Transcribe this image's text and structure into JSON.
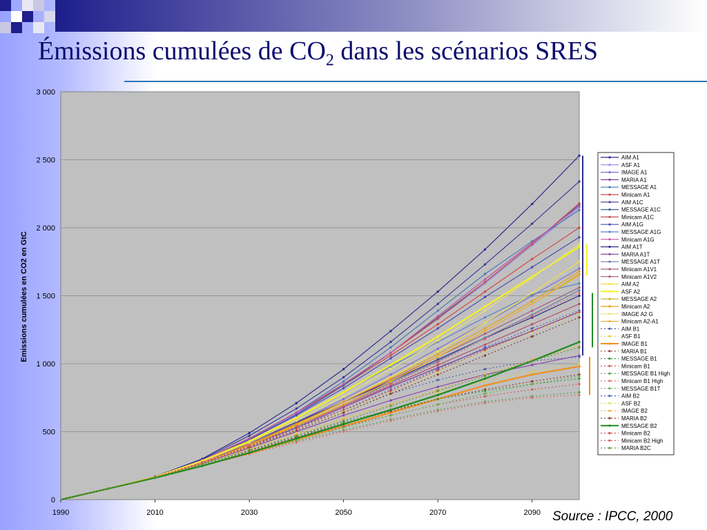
{
  "slide": {
    "title_main": "Émissions cumulées de CO",
    "title_sub": "2",
    "title_rest": " dans les scénarios SRES",
    "source": "Source : IPCC, 2000"
  },
  "colors": {
    "slide_left": "#9aa4ff",
    "slide_top_bar": "#1e1e8c",
    "plot_bg": "#c0c0c0",
    "rule": "#2e75b6"
  },
  "chart_data": {
    "type": "line",
    "title": "",
    "xlabel": "",
    "ylabel": "Emissions cumulées en CO2 en GtC",
    "x": [
      1990,
      2000,
      2010,
      2020,
      2030,
      2040,
      2050,
      2060,
      2070,
      2080,
      2090,
      2100
    ],
    "xlim": [
      1990,
      2100
    ],
    "ylim": [
      0,
      3000
    ],
    "x_ticks": [
      "1990",
      "2010",
      "2030",
      "2050",
      "2070",
      "2090"
    ],
    "y_ticks": [
      "0",
      "500",
      "1 000",
      "1 500",
      "2 000",
      "2 500",
      "3 000"
    ],
    "grid": "horizontal",
    "legend_position": "right",
    "series": [
      {
        "name": "AIM A1",
        "color": "#2b2b8f",
        "dash": "solid",
        "width": 1.2,
        "values": [
          0,
          80,
          170,
          300,
          490,
          710,
          960,
          1240,
          1530,
          1840,
          2175,
          2530
        ]
      },
      {
        "name": "ASF A1",
        "color": "#8a8af0",
        "dash": "solid",
        "width": 1.2,
        "values": [
          0,
          80,
          168,
          285,
          440,
          630,
          850,
          1080,
          1330,
          1590,
          1870,
          2150
        ]
      },
      {
        "name": "IMAGE A1",
        "color": "#7b6fd0",
        "dash": "solid",
        "width": 1.2,
        "values": [
          0,
          80,
          165,
          275,
          410,
          570,
          740,
          920,
          1110,
          1300,
          1500,
          1700
        ]
      },
      {
        "name": "MARIA A1",
        "color": "#7b3f9e",
        "dash": "solid",
        "width": 1.2,
        "values": [
          0,
          80,
          165,
          270,
          395,
          530,
          680,
          830,
          970,
          1110,
          1240,
          1380
        ]
      },
      {
        "name": "MESSAGE A1",
        "color": "#4a7ab8",
        "dash": "solid",
        "width": 1.2,
        "values": [
          0,
          80,
          167,
          285,
          445,
          640,
          870,
          1120,
          1390,
          1660,
          1900,
          2130
        ]
      },
      {
        "name": "Minicam A1",
        "color": "#d04848",
        "dash": "solid",
        "width": 1.2,
        "values": [
          0,
          80,
          168,
          290,
          450,
          640,
          840,
          1060,
          1290,
          1530,
          1770,
          2000
        ]
      },
      {
        "name": "AIM A1C",
        "color": "#3a3a9a",
        "dash": "solid",
        "width": 1.2,
        "values": [
          0,
          80,
          170,
          295,
          470,
          670,
          900,
          1160,
          1440,
          1730,
          2030,
          2340
        ]
      },
      {
        "name": "MESSAGE A1C",
        "color": "#3f5f9e",
        "dash": "solid",
        "width": 1.2,
        "values": [
          0,
          80,
          167,
          285,
          440,
          625,
          840,
          1080,
          1340,
          1600,
          1880,
          2170
        ]
      },
      {
        "name": "Minicam A1C",
        "color": "#c85050",
        "dash": "solid",
        "width": 1.2,
        "values": [
          0,
          80,
          168,
          290,
          450,
          640,
          850,
          1080,
          1330,
          1600,
          1880,
          2180
        ]
      },
      {
        "name": "AIM A1G",
        "color": "#4b4bb0",
        "dash": "solid",
        "width": 1.2,
        "values": [
          0,
          80,
          168,
          285,
          440,
          620,
          820,
          1040,
          1260,
          1490,
          1710,
          1930
        ]
      },
      {
        "name": "MESSAGE A1G",
        "color": "#5a82c0",
        "dash": "solid",
        "width": 1.2,
        "values": [
          0,
          80,
          167,
          280,
          430,
          600,
          790,
          980,
          1160,
          1340,
          1510,
          1590
        ]
      },
      {
        "name": "Minicam A1G",
        "color": "#c054a0",
        "dash": "solid",
        "width": 1.2,
        "values": [
          0,
          80,
          168,
          290,
          450,
          640,
          850,
          1080,
          1350,
          1620,
          1890,
          2160
        ]
      },
      {
        "name": "AIM A1T",
        "color": "#2e2e88",
        "dash": "solid",
        "width": 1.2,
        "values": [
          0,
          80,
          167,
          280,
          420,
          570,
          720,
          870,
          1030,
          1190,
          1340,
          1500
        ]
      },
      {
        "name": "MARIA A1T",
        "color": "#8a4ab0",
        "dash": "solid",
        "width": 1.2,
        "values": [
          0,
          80,
          165,
          265,
          380,
          500,
          620,
          730,
          830,
          920,
          990,
          1060
        ]
      },
      {
        "name": "MESSAGE A1T",
        "color": "#6a7aa8",
        "dash": "solid",
        "width": 1.2,
        "values": [
          0,
          80,
          165,
          270,
          400,
          545,
          700,
          860,
          1020,
          1190,
          1360,
          1540
        ]
      },
      {
        "name": "Minicam A1V1",
        "color": "#a06080",
        "dash": "solid",
        "width": 1.2,
        "values": [
          0,
          80,
          166,
          275,
          410,
          560,
          720,
          880,
          1050,
          1220,
          1390,
          1560
        ]
      },
      {
        "name": "Minicam A1V2",
        "color": "#b05070",
        "dash": "solid",
        "width": 1.2,
        "values": [
          0,
          80,
          166,
          272,
          400,
          540,
          690,
          840,
          990,
          1140,
          1290,
          1440
        ]
      },
      {
        "name": "AIM A2",
        "color": "#f0e040",
        "dash": "solid",
        "width": 1.2,
        "values": [
          0,
          80,
          165,
          270,
          400,
          550,
          720,
          900,
          1090,
          1300,
          1520,
          1750
        ]
      },
      {
        "name": "ASF A2",
        "color": "#f5f020",
        "dash": "solid",
        "width": 2.2,
        "values": [
          0,
          80,
          167,
          285,
          430,
          600,
          790,
          990,
          1200,
          1420,
          1640,
          1860
        ]
      },
      {
        "name": "MESSAGE A2",
        "color": "#c8b020",
        "dash": "solid",
        "width": 1.2,
        "values": [
          0,
          80,
          165,
          270,
          400,
          545,
          700,
          870,
          1050,
          1240,
          1440,
          1660
        ]
      },
      {
        "name": "Minicam A2",
        "color": "#e8a010",
        "dash": "solid",
        "width": 1.2,
        "values": [
          0,
          80,
          165,
          272,
          405,
          555,
          720,
          890,
          1070,
          1260,
          1460,
          1680
        ]
      },
      {
        "name": "IMAGE A2 G",
        "color": "#e8e070",
        "dash": "solid",
        "width": 1.2,
        "values": [
          0,
          80,
          166,
          280,
          420,
          580,
          760,
          960,
          1170,
          1390,
          1630,
          1880
        ]
      },
      {
        "name": "Minicam A2-A1",
        "color": "#f0b030",
        "dash": "solid",
        "width": 1.2,
        "values": [
          0,
          80,
          165,
          270,
          395,
          540,
          700,
          870,
          1050,
          1240,
          1440,
          1650
        ]
      },
      {
        "name": "AIM B1",
        "color": "#4a60b0",
        "dash": "dotted",
        "width": 1.2,
        "values": [
          0,
          80,
          166,
          275,
          400,
          530,
          660,
          780,
          880,
          960,
          1020,
          1050
        ]
      },
      {
        "name": "ASF B1",
        "color": "#e0d040",
        "dash": "dotted",
        "width": 1.2,
        "values": [
          0,
          80,
          165,
          265,
          375,
          490,
          600,
          700,
          790,
          870,
          940,
          1000
        ]
      },
      {
        "name": "IMAGE B1",
        "color": "#f0901e",
        "dash": "solid",
        "width": 2.2,
        "values": [
          0,
          80,
          162,
          250,
          340,
          440,
          540,
          640,
          740,
          840,
          920,
          980
        ]
      },
      {
        "name": "MARIA B1",
        "color": "#9a3a3a",
        "dash": "dotted",
        "width": 1.2,
        "values": [
          0,
          80,
          164,
          260,
          360,
          460,
          560,
          650,
          740,
          810,
          870,
          920
        ]
      },
      {
        "name": "MESSAGE B1",
        "color": "#3a9a3a",
        "dash": "dotted",
        "width": 1.2,
        "values": [
          0,
          80,
          165,
          262,
          365,
          470,
          570,
          660,
          740,
          800,
          850,
          890
        ]
      },
      {
        "name": "Minicam B1",
        "color": "#d06060",
        "dash": "dotted",
        "width": 1.2,
        "values": [
          0,
          80,
          164,
          258,
          355,
          450,
          540,
          620,
          700,
          760,
          810,
          850
        ]
      },
      {
        "name": "MESSAGE B1 High",
        "color": "#50a050",
        "dash": "dotted",
        "width": 1.2,
        "values": [
          0,
          80,
          164,
          255,
          345,
          430,
          510,
          590,
          660,
          720,
          760,
          790
        ]
      },
      {
        "name": "Minicam B1 High",
        "color": "#e07070",
        "dash": "dotted",
        "width": 1.2,
        "values": [
          0,
          80,
          163,
          250,
          335,
          420,
          500,
          580,
          650,
          710,
          750,
          770
        ]
      },
      {
        "name": "MESSAGE B1T",
        "color": "#68b048",
        "dash": "dotted",
        "width": 1.2,
        "values": [
          0,
          80,
          164,
          256,
          350,
          440,
          530,
          620,
          700,
          780,
          850,
          910
        ]
      },
      {
        "name": "AIM B2",
        "color": "#5060c0",
        "dash": "dotted",
        "width": 1.2,
        "values": [
          0,
          80,
          165,
          270,
          390,
          520,
          660,
          810,
          960,
          1120,
          1260,
          1390
        ]
      },
      {
        "name": "ASF B2",
        "color": "#e0e060",
        "dash": "dotted",
        "width": 1.2,
        "values": [
          0,
          80,
          165,
          268,
          385,
          510,
          650,
          790,
          940,
          1090,
          1230,
          1370
        ]
      },
      {
        "name": "IMAGE B2",
        "color": "#f0b040",
        "dash": "dotted",
        "width": 1.2,
        "values": [
          0,
          80,
          164,
          262,
          370,
          480,
          590,
          700,
          810,
          920,
          1030,
          1130
        ]
      },
      {
        "name": "MARIA B2",
        "color": "#8a4030",
        "dash": "dotted",
        "width": 1.2,
        "values": [
          0,
          80,
          165,
          268,
          385,
          510,
          640,
          780,
          920,
          1060,
          1200,
          1340
        ]
      },
      {
        "name": "MESSAGE B2",
        "color": "#1e8a1e",
        "dash": "solid",
        "width": 2.2,
        "values": [
          0,
          80,
          160,
          248,
          345,
          450,
          555,
          660,
          770,
          890,
          1020,
          1160
        ]
      },
      {
        "name": "Minicam B2",
        "color": "#d05050",
        "dash": "dotted",
        "width": 1.2,
        "values": [
          0,
          80,
          165,
          270,
          390,
          520,
          660,
          800,
          950,
          1100,
          1240,
          1380
        ]
      },
      {
        "name": "Minicam B2 High",
        "color": "#e06060",
        "dash": "dotted",
        "width": 1.2,
        "values": [
          0,
          80,
          166,
          275,
          400,
          540,
          690,
          850,
          1010,
          1180,
          1350,
          1520
        ]
      },
      {
        "name": "MARIA B2C",
        "color": "#5a9a3a",
        "dash": "dotted",
        "width": 1.2,
        "values": [
          0,
          80,
          164,
          260,
          365,
          470,
          580,
          690,
          800,
          910,
          1020,
          1120
        ]
      }
    ]
  }
}
